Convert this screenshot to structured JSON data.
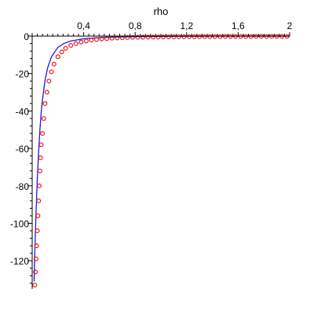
{
  "chart_data": {
    "type": "line",
    "xlabel": "rho",
    "ylabel": "",
    "xlim": [
      0,
      2
    ],
    "ylim": [
      -135,
      0
    ],
    "x_ticks": [
      {
        "value": 0.4,
        "label": "0,4"
      },
      {
        "value": 0.8,
        "label": "0,8"
      },
      {
        "value": 1.2,
        "label": "1,2"
      },
      {
        "value": 1.6,
        "label": "1,6"
      },
      {
        "value": 2.0,
        "label": "2"
      }
    ],
    "y_ticks": [
      {
        "value": 0,
        "label": "0"
      },
      {
        "value": -20,
        "label": "-20"
      },
      {
        "value": -40,
        "label": "-40"
      },
      {
        "value": -60,
        "label": "-60"
      },
      {
        "value": -80,
        "label": "-80"
      },
      {
        "value": -100,
        "label": "-100"
      },
      {
        "value": -120,
        "label": "-120"
      }
    ],
    "x_axis_position": "top",
    "grid": false,
    "series": [
      {
        "kind": "line",
        "color": "#1a1adb",
        "x": [
          0.015,
          0.02,
          0.03,
          0.04,
          0.05,
          0.06,
          0.07,
          0.08,
          0.1,
          0.12,
          0.15,
          0.2,
          0.25,
          0.3,
          0.4,
          0.5,
          0.6,
          0.8,
          1.0,
          1.2,
          1.4,
          1.6,
          1.8,
          2.0
        ],
        "y": [
          -131,
          -117,
          -94,
          -76,
          -62,
          -50,
          -41,
          -34,
          -23.5,
          -17,
          -11,
          -6,
          -3.8,
          -2.6,
          -1.4,
          -0.9,
          -0.6,
          -0.3,
          -0.15,
          -0.1,
          -0.06,
          -0.04,
          -0.03,
          -0.02
        ]
      },
      {
        "kind": "scatter",
        "marker": "circle",
        "color": "#e8191e",
        "x": [
          0.02,
          0.025,
          0.03,
          0.035,
          0.04,
          0.045,
          0.05,
          0.055,
          0.06,
          0.065,
          0.07,
          0.08,
          0.09,
          0.1,
          0.115,
          0.13,
          0.15,
          0.17,
          0.2,
          0.23,
          0.26,
          0.3,
          0.34,
          0.38,
          0.42,
          0.46,
          0.5,
          0.54,
          0.58,
          0.62,
          0.66,
          0.7,
          0.74,
          0.78,
          0.82,
          0.86,
          0.9,
          0.94,
          0.98,
          1.02,
          1.06,
          1.1,
          1.14,
          1.18,
          1.22,
          1.26,
          1.3,
          1.34,
          1.38,
          1.42,
          1.46,
          1.5,
          1.54,
          1.58,
          1.62,
          1.66,
          1.7,
          1.74,
          1.78,
          1.82,
          1.86,
          1.9,
          1.94,
          1.98
        ],
        "y": [
          -133,
          -126,
          -119,
          -112,
          -104,
          -96,
          -88,
          -80,
          -72,
          -65,
          -58,
          -52,
          -44,
          -36,
          -30,
          -24,
          -19,
          -15,
          -11,
          -8.5,
          -6.5,
          -5,
          -4,
          -3.2,
          -2.6,
          -2.1,
          -1.8,
          -1.5,
          -1.3,
          -1.1,
          -1,
          -0.9,
          -0.8,
          -0.7,
          -0.65,
          -0.6,
          -0.55,
          -0.5,
          -0.45,
          -0.42,
          -0.4,
          -0.38,
          -0.35,
          -0.33,
          -0.31,
          -0.3,
          -0.28,
          -0.27,
          -0.26,
          -0.25,
          -0.24,
          -0.23,
          -0.22,
          -0.21,
          -0.2,
          -0.2,
          -0.19,
          -0.18,
          -0.18,
          -0.17,
          -0.17,
          -0.16,
          -0.16,
          -0.15
        ]
      }
    ]
  }
}
